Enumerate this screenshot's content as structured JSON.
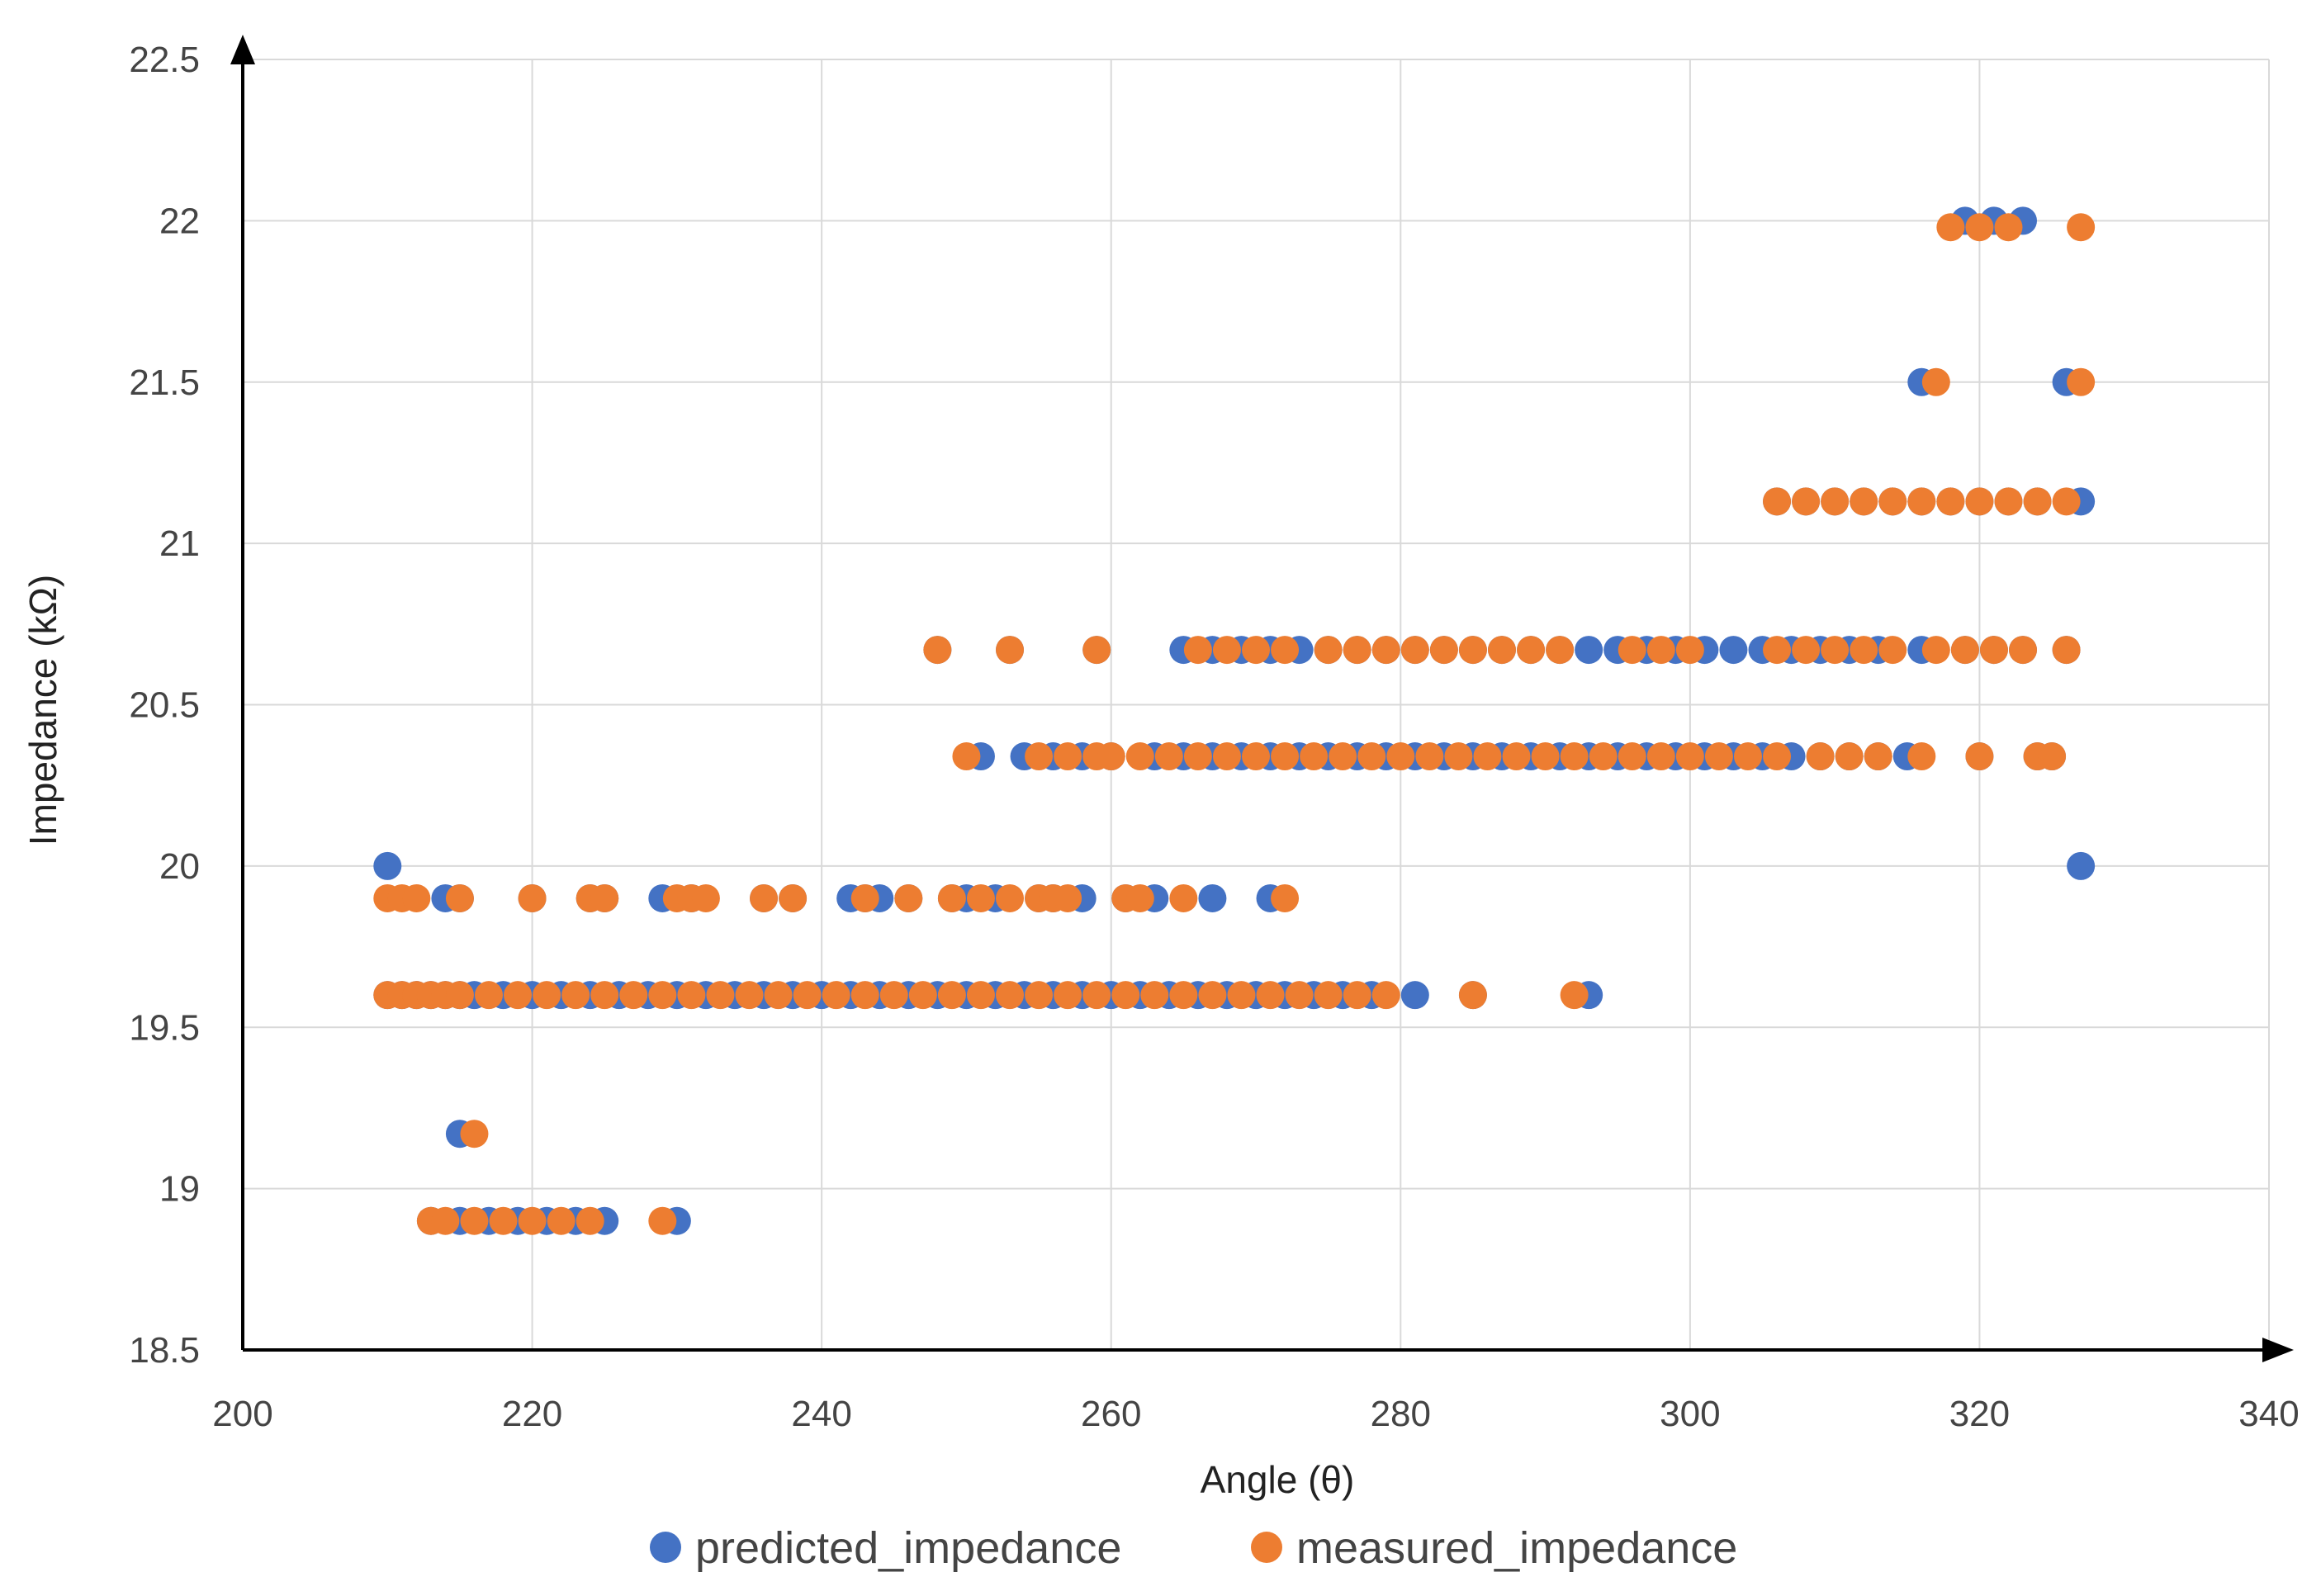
{
  "chart_data": {
    "type": "scatter",
    "title": "",
    "xlabel": "Angle (θ)",
    "ylabel": "Impedance (kΩ)",
    "xlim": [
      200,
      340
    ],
    "ylim": [
      18.5,
      22.5
    ],
    "xticks": [
      "200",
      "220",
      "240",
      "260",
      "280",
      "300",
      "320",
      "340"
    ],
    "yticks": [
      "18.5",
      "19",
      "19.5",
      "20",
      "20.5",
      "21",
      "21.5",
      "22",
      "22.5"
    ],
    "grid": true,
    "legend_position": "bottom",
    "colors": {
      "predicted": "#4472C4",
      "measured": "#ED7D31",
      "grid": "#D9D9D9",
      "axis": "#000000"
    },
    "series": [
      {
        "name": "predicted_impedance",
        "color": "#4472C4",
        "points": [
          [
            210,
            20.0
          ],
          [
            210,
            19.6
          ],
          [
            211,
            19.6
          ],
          [
            212,
            19.6
          ],
          [
            213,
            19.6
          ],
          [
            214,
            19.6
          ],
          [
            215,
            19.6
          ],
          [
            214,
            19.9
          ],
          [
            215,
            19.9
          ],
          [
            220,
            19.9
          ],
          [
            224,
            19.9
          ],
          [
            225,
            19.9
          ],
          [
            229,
            19.9
          ],
          [
            231,
            19.9
          ],
          [
            236,
            19.9
          ],
          [
            238,
            19.9
          ],
          [
            242,
            19.9
          ],
          [
            243,
            19.9
          ],
          [
            244,
            19.9
          ],
          [
            246,
            19.9
          ],
          [
            249,
            19.9
          ],
          [
            250,
            19.9
          ],
          [
            252,
            19.9
          ],
          [
            255,
            19.9
          ],
          [
            256,
            19.9
          ],
          [
            258,
            19.9
          ],
          [
            261,
            19.9
          ],
          [
            263,
            19.9
          ],
          [
            267,
            19.9
          ],
          [
            271,
            19.9
          ],
          [
            216,
            19.6
          ],
          [
            218,
            19.6
          ],
          [
            220,
            19.6
          ],
          [
            222,
            19.6
          ],
          [
            224,
            19.6
          ],
          [
            226,
            19.6
          ],
          [
            228,
            19.6
          ],
          [
            230,
            19.6
          ],
          [
            232,
            19.6
          ],
          [
            234,
            19.6
          ],
          [
            236,
            19.6
          ],
          [
            238,
            19.6
          ],
          [
            240,
            19.6
          ],
          [
            242,
            19.6
          ],
          [
            244,
            19.6
          ],
          [
            246,
            19.6
          ],
          [
            248,
            19.6
          ],
          [
            250,
            19.6
          ],
          [
            252,
            19.6
          ],
          [
            254,
            19.6
          ],
          [
            256,
            19.6
          ],
          [
            258,
            19.6
          ],
          [
            260,
            19.6
          ],
          [
            262,
            19.6
          ],
          [
            264,
            19.6
          ],
          [
            266,
            19.6
          ],
          [
            268,
            19.6
          ],
          [
            270,
            19.6
          ],
          [
            272,
            19.6
          ],
          [
            274,
            19.6
          ],
          [
            276,
            19.6
          ],
          [
            278,
            19.6
          ],
          [
            281,
            19.6
          ],
          [
            285,
            19.6
          ],
          [
            293,
            19.6
          ],
          [
            215,
            19.17
          ],
          [
            213,
            18.9
          ],
          [
            215,
            18.9
          ],
          [
            217,
            18.9
          ],
          [
            219,
            18.9
          ],
          [
            221,
            18.9
          ],
          [
            223,
            18.9
          ],
          [
            225,
            18.9
          ],
          [
            230,
            18.9
          ],
          [
            248,
            20.67
          ],
          [
            253,
            20.67
          ],
          [
            259,
            20.67
          ],
          [
            265,
            20.67
          ],
          [
            267,
            20.67
          ],
          [
            269,
            20.67
          ],
          [
            271,
            20.67
          ],
          [
            273,
            20.67
          ],
          [
            275,
            20.67
          ],
          [
            277,
            20.67
          ],
          [
            279,
            20.67
          ],
          [
            281,
            20.67
          ],
          [
            283,
            20.67
          ],
          [
            285,
            20.67
          ],
          [
            287,
            20.67
          ],
          [
            289,
            20.67
          ],
          [
            291,
            20.67
          ],
          [
            293,
            20.67
          ],
          [
            295,
            20.67
          ],
          [
            297,
            20.67
          ],
          [
            299,
            20.67
          ],
          [
            301,
            20.67
          ],
          [
            303,
            20.67
          ],
          [
            305,
            20.67
          ],
          [
            307,
            20.67
          ],
          [
            309,
            20.67
          ],
          [
            311,
            20.67
          ],
          [
            313,
            20.67
          ],
          [
            316,
            20.67
          ],
          [
            319,
            20.67
          ],
          [
            321,
            20.67
          ],
          [
            323,
            20.67
          ],
          [
            326,
            20.67
          ],
          [
            251,
            20.34
          ],
          [
            254,
            20.34
          ],
          [
            256,
            20.34
          ],
          [
            258,
            20.34
          ],
          [
            260,
            20.34
          ],
          [
            263,
            20.34
          ],
          [
            265,
            20.34
          ],
          [
            267,
            20.34
          ],
          [
            269,
            20.34
          ],
          [
            271,
            20.34
          ],
          [
            273,
            20.34
          ],
          [
            275,
            20.34
          ],
          [
            277,
            20.34
          ],
          [
            279,
            20.34
          ],
          [
            281,
            20.34
          ],
          [
            283,
            20.34
          ],
          [
            285,
            20.34
          ],
          [
            287,
            20.34
          ],
          [
            289,
            20.34
          ],
          [
            291,
            20.34
          ],
          [
            293,
            20.34
          ],
          [
            295,
            20.34
          ],
          [
            297,
            20.34
          ],
          [
            299,
            20.34
          ],
          [
            301,
            20.34
          ],
          [
            303,
            20.34
          ],
          [
            305,
            20.34
          ],
          [
            307,
            20.34
          ],
          [
            309,
            20.34
          ],
          [
            311,
            20.34
          ],
          [
            313,
            20.34
          ],
          [
            315,
            20.34
          ],
          [
            320,
            20.34
          ],
          [
            324,
            20.34
          ],
          [
            325,
            20.34
          ],
          [
            306,
            21.13
          ],
          [
            308,
            21.13
          ],
          [
            310,
            21.13
          ],
          [
            312,
            21.13
          ],
          [
            314,
            21.13
          ],
          [
            316,
            21.13
          ],
          [
            318,
            21.13
          ],
          [
            320,
            21.13
          ],
          [
            322,
            21.13
          ],
          [
            324,
            21.13
          ],
          [
            327,
            21.13
          ],
          [
            316,
            21.5
          ],
          [
            326,
            21.5
          ],
          [
            319,
            22.0
          ],
          [
            321,
            22.0
          ],
          [
            323,
            22.0
          ],
          [
            327,
            20.0
          ]
        ]
      },
      {
        "name": "measured_impedance",
        "color": "#ED7D31",
        "points": [
          [
            210,
            19.9
          ],
          [
            211,
            19.9
          ],
          [
            212,
            19.9
          ],
          [
            215,
            19.9
          ],
          [
            220,
            19.9
          ],
          [
            224,
            19.9
          ],
          [
            225,
            19.9
          ],
          [
            230,
            19.9
          ],
          [
            231,
            19.9
          ],
          [
            232,
            19.9
          ],
          [
            236,
            19.9
          ],
          [
            238,
            19.9
          ],
          [
            243,
            19.9
          ],
          [
            246,
            19.9
          ],
          [
            249,
            19.9
          ],
          [
            251,
            19.9
          ],
          [
            253,
            19.9
          ],
          [
            255,
            19.9
          ],
          [
            256,
            19.9
          ],
          [
            257,
            19.9
          ],
          [
            261,
            19.9
          ],
          [
            262,
            19.9
          ],
          [
            265,
            19.9
          ],
          [
            272,
            19.9
          ],
          [
            210,
            19.6
          ],
          [
            211,
            19.6
          ],
          [
            212,
            19.6
          ],
          [
            213,
            19.6
          ],
          [
            214,
            19.6
          ],
          [
            215,
            19.6
          ],
          [
            217,
            19.6
          ],
          [
            219,
            19.6
          ],
          [
            221,
            19.6
          ],
          [
            223,
            19.6
          ],
          [
            225,
            19.6
          ],
          [
            227,
            19.6
          ],
          [
            229,
            19.6
          ],
          [
            231,
            19.6
          ],
          [
            233,
            19.6
          ],
          [
            235,
            19.6
          ],
          [
            237,
            19.6
          ],
          [
            239,
            19.6
          ],
          [
            241,
            19.6
          ],
          [
            243,
            19.6
          ],
          [
            245,
            19.6
          ],
          [
            247,
            19.6
          ],
          [
            249,
            19.6
          ],
          [
            251,
            19.6
          ],
          [
            253,
            19.6
          ],
          [
            255,
            19.6
          ],
          [
            257,
            19.6
          ],
          [
            259,
            19.6
          ],
          [
            261,
            19.6
          ],
          [
            263,
            19.6
          ],
          [
            265,
            19.6
          ],
          [
            267,
            19.6
          ],
          [
            269,
            19.6
          ],
          [
            271,
            19.6
          ],
          [
            273,
            19.6
          ],
          [
            275,
            19.6
          ],
          [
            277,
            19.6
          ],
          [
            279,
            19.6
          ],
          [
            285,
            19.6
          ],
          [
            292,
            19.6
          ],
          [
            216,
            19.17
          ],
          [
            213,
            18.9
          ],
          [
            214,
            18.9
          ],
          [
            216,
            18.9
          ],
          [
            218,
            18.9
          ],
          [
            220,
            18.9
          ],
          [
            222,
            18.9
          ],
          [
            224,
            18.9
          ],
          [
            229,
            18.9
          ],
          [
            248,
            20.67
          ],
          [
            253,
            20.67
          ],
          [
            259,
            20.67
          ],
          [
            266,
            20.67
          ],
          [
            268,
            20.67
          ],
          [
            270,
            20.67
          ],
          [
            272,
            20.67
          ],
          [
            275,
            20.67
          ],
          [
            277,
            20.67
          ],
          [
            279,
            20.67
          ],
          [
            281,
            20.67
          ],
          [
            283,
            20.67
          ],
          [
            285,
            20.67
          ],
          [
            287,
            20.67
          ],
          [
            289,
            20.67
          ],
          [
            291,
            20.67
          ],
          [
            296,
            20.67
          ],
          [
            298,
            20.67
          ],
          [
            300,
            20.67
          ],
          [
            306,
            20.67
          ],
          [
            308,
            20.67
          ],
          [
            310,
            20.67
          ],
          [
            312,
            20.67
          ],
          [
            314,
            20.67
          ],
          [
            317,
            20.67
          ],
          [
            319,
            20.67
          ],
          [
            321,
            20.67
          ],
          [
            323,
            20.67
          ],
          [
            326,
            20.67
          ],
          [
            250,
            20.34
          ],
          [
            255,
            20.34
          ],
          [
            257,
            20.34
          ],
          [
            259,
            20.34
          ],
          [
            260,
            20.34
          ],
          [
            262,
            20.34
          ],
          [
            264,
            20.34
          ],
          [
            266,
            20.34
          ],
          [
            268,
            20.34
          ],
          [
            270,
            20.34
          ],
          [
            272,
            20.34
          ],
          [
            274,
            20.34
          ],
          [
            276,
            20.34
          ],
          [
            278,
            20.34
          ],
          [
            280,
            20.34
          ],
          [
            282,
            20.34
          ],
          [
            284,
            20.34
          ],
          [
            286,
            20.34
          ],
          [
            288,
            20.34
          ],
          [
            290,
            20.34
          ],
          [
            292,
            20.34
          ],
          [
            294,
            20.34
          ],
          [
            296,
            20.34
          ],
          [
            298,
            20.34
          ],
          [
            300,
            20.34
          ],
          [
            302,
            20.34
          ],
          [
            304,
            20.34
          ],
          [
            306,
            20.34
          ],
          [
            309,
            20.34
          ],
          [
            311,
            20.34
          ],
          [
            313,
            20.34
          ],
          [
            316,
            20.34
          ],
          [
            320,
            20.34
          ],
          [
            324,
            20.34
          ],
          [
            325,
            20.34
          ],
          [
            306,
            21.13
          ],
          [
            308,
            21.13
          ],
          [
            310,
            21.13
          ],
          [
            312,
            21.13
          ],
          [
            314,
            21.13
          ],
          [
            316,
            21.13
          ],
          [
            318,
            21.13
          ],
          [
            320,
            21.13
          ],
          [
            322,
            21.13
          ],
          [
            324,
            21.13
          ],
          [
            326,
            21.13
          ],
          [
            317,
            21.5
          ],
          [
            327,
            21.5
          ],
          [
            318,
            21.98
          ],
          [
            320,
            21.98
          ],
          [
            322,
            21.98
          ],
          [
            327,
            21.98
          ]
        ]
      }
    ],
    "legend": [
      "predicted_impedance",
      "measured_impedance"
    ]
  }
}
